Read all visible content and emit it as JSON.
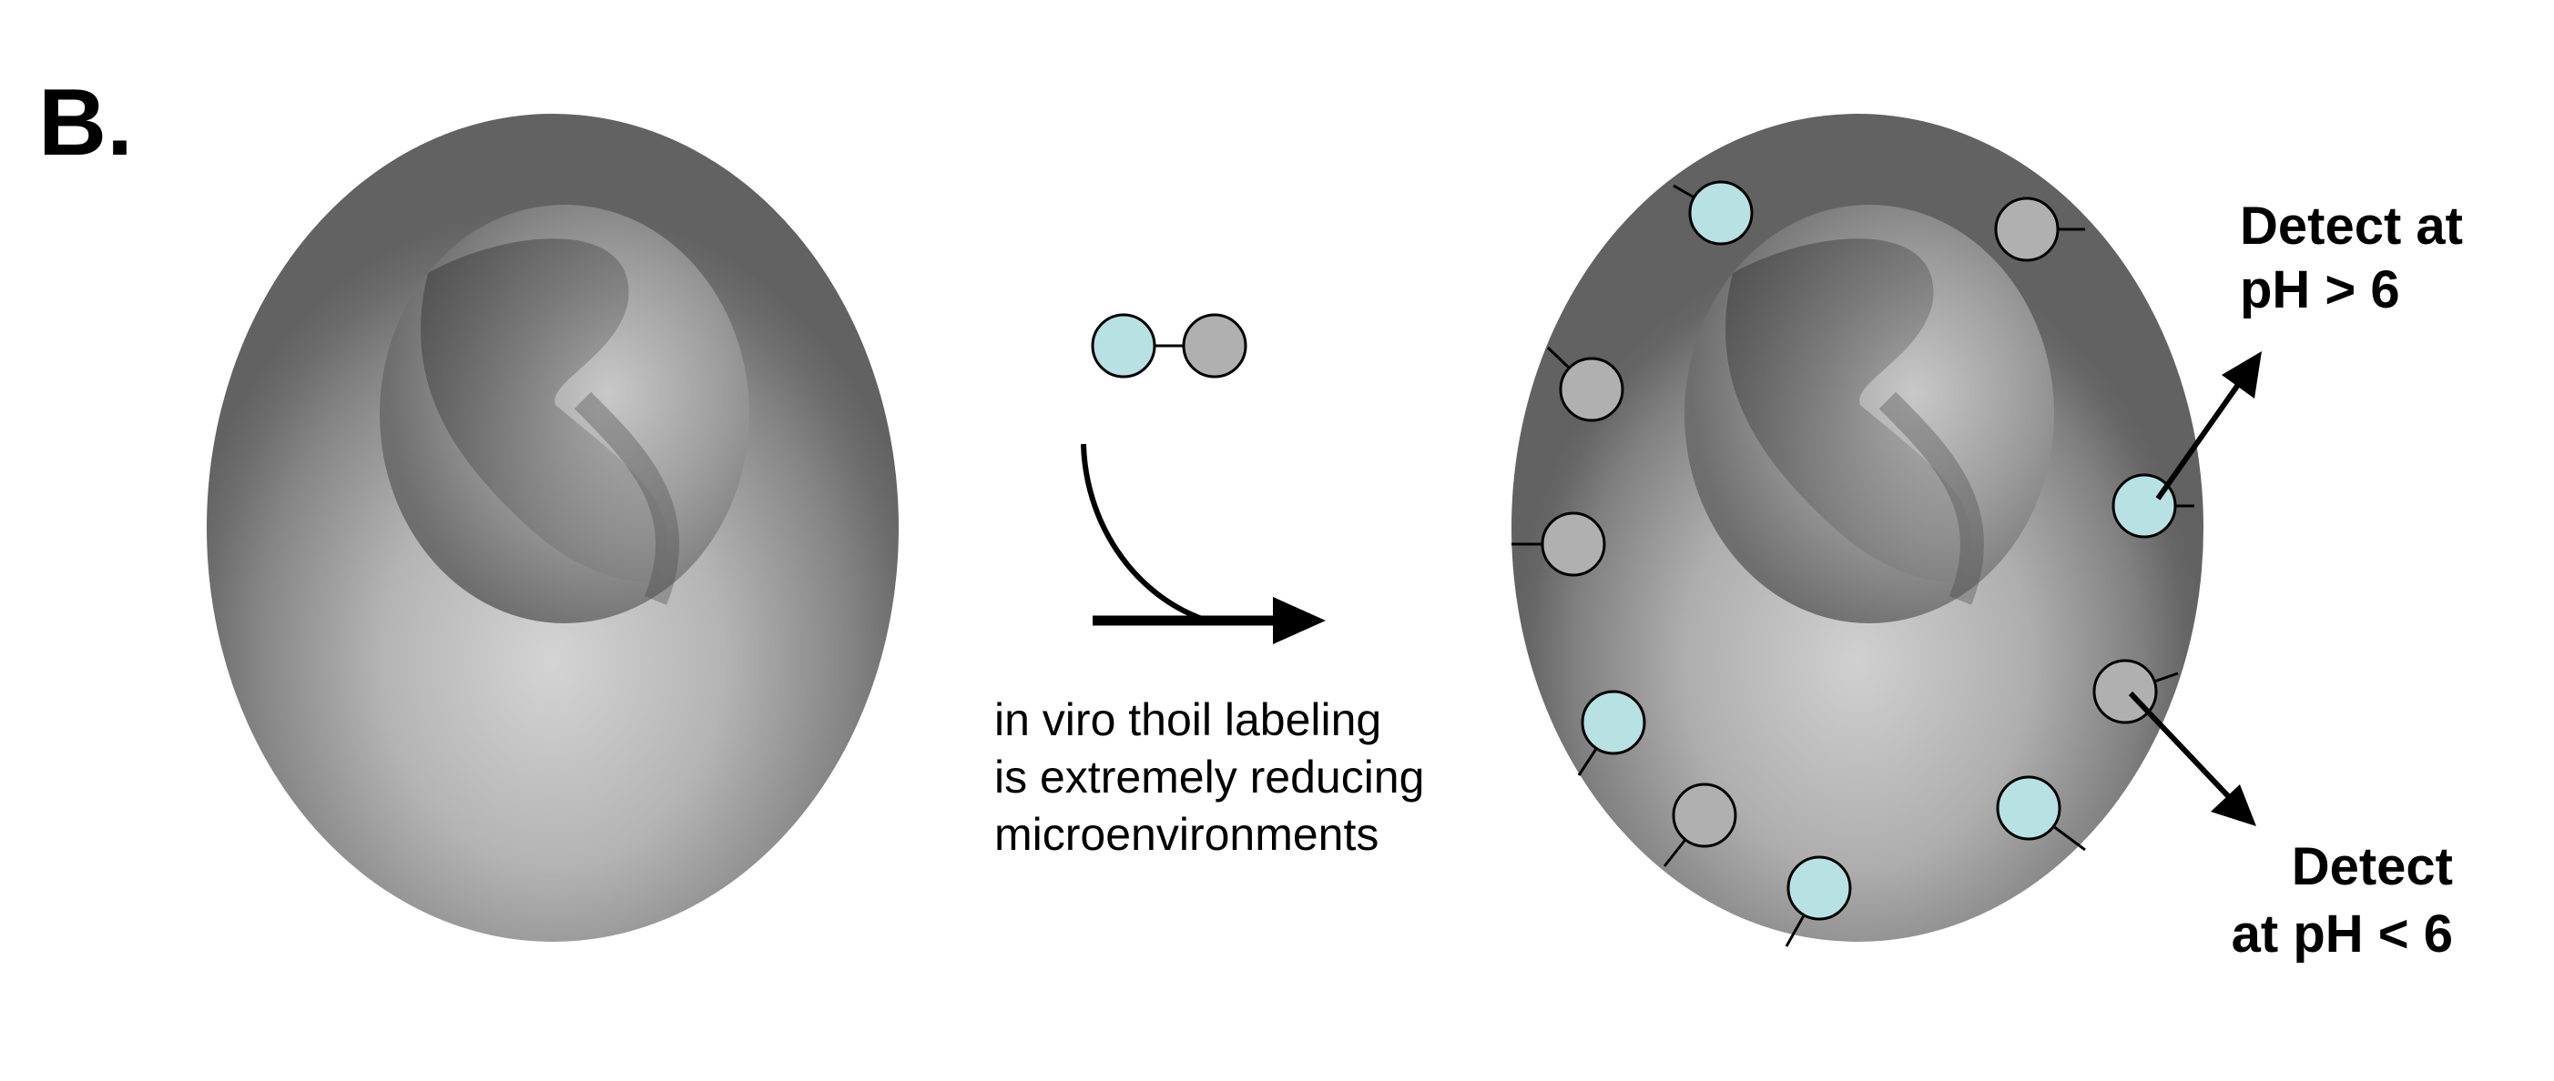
{
  "panel_label": "B.",
  "caption": {
    "line1": "in viro thoil labeling",
    "line2": "is extremely reducing",
    "line3": "microenvironments"
  },
  "detect_high": {
    "line1": "Detect at",
    "line2": "pH > 6"
  },
  "detect_low": {
    "line1": "Detect",
    "line2": "at pH < 6"
  },
  "colors": {
    "probe_cyan": "#b7e1e2",
    "probe_gray": "#b0b0b0",
    "cell_dark": "#626262",
    "cell_light": "#cfcfcf",
    "nucleus_dark": "#3e3e3e"
  }
}
